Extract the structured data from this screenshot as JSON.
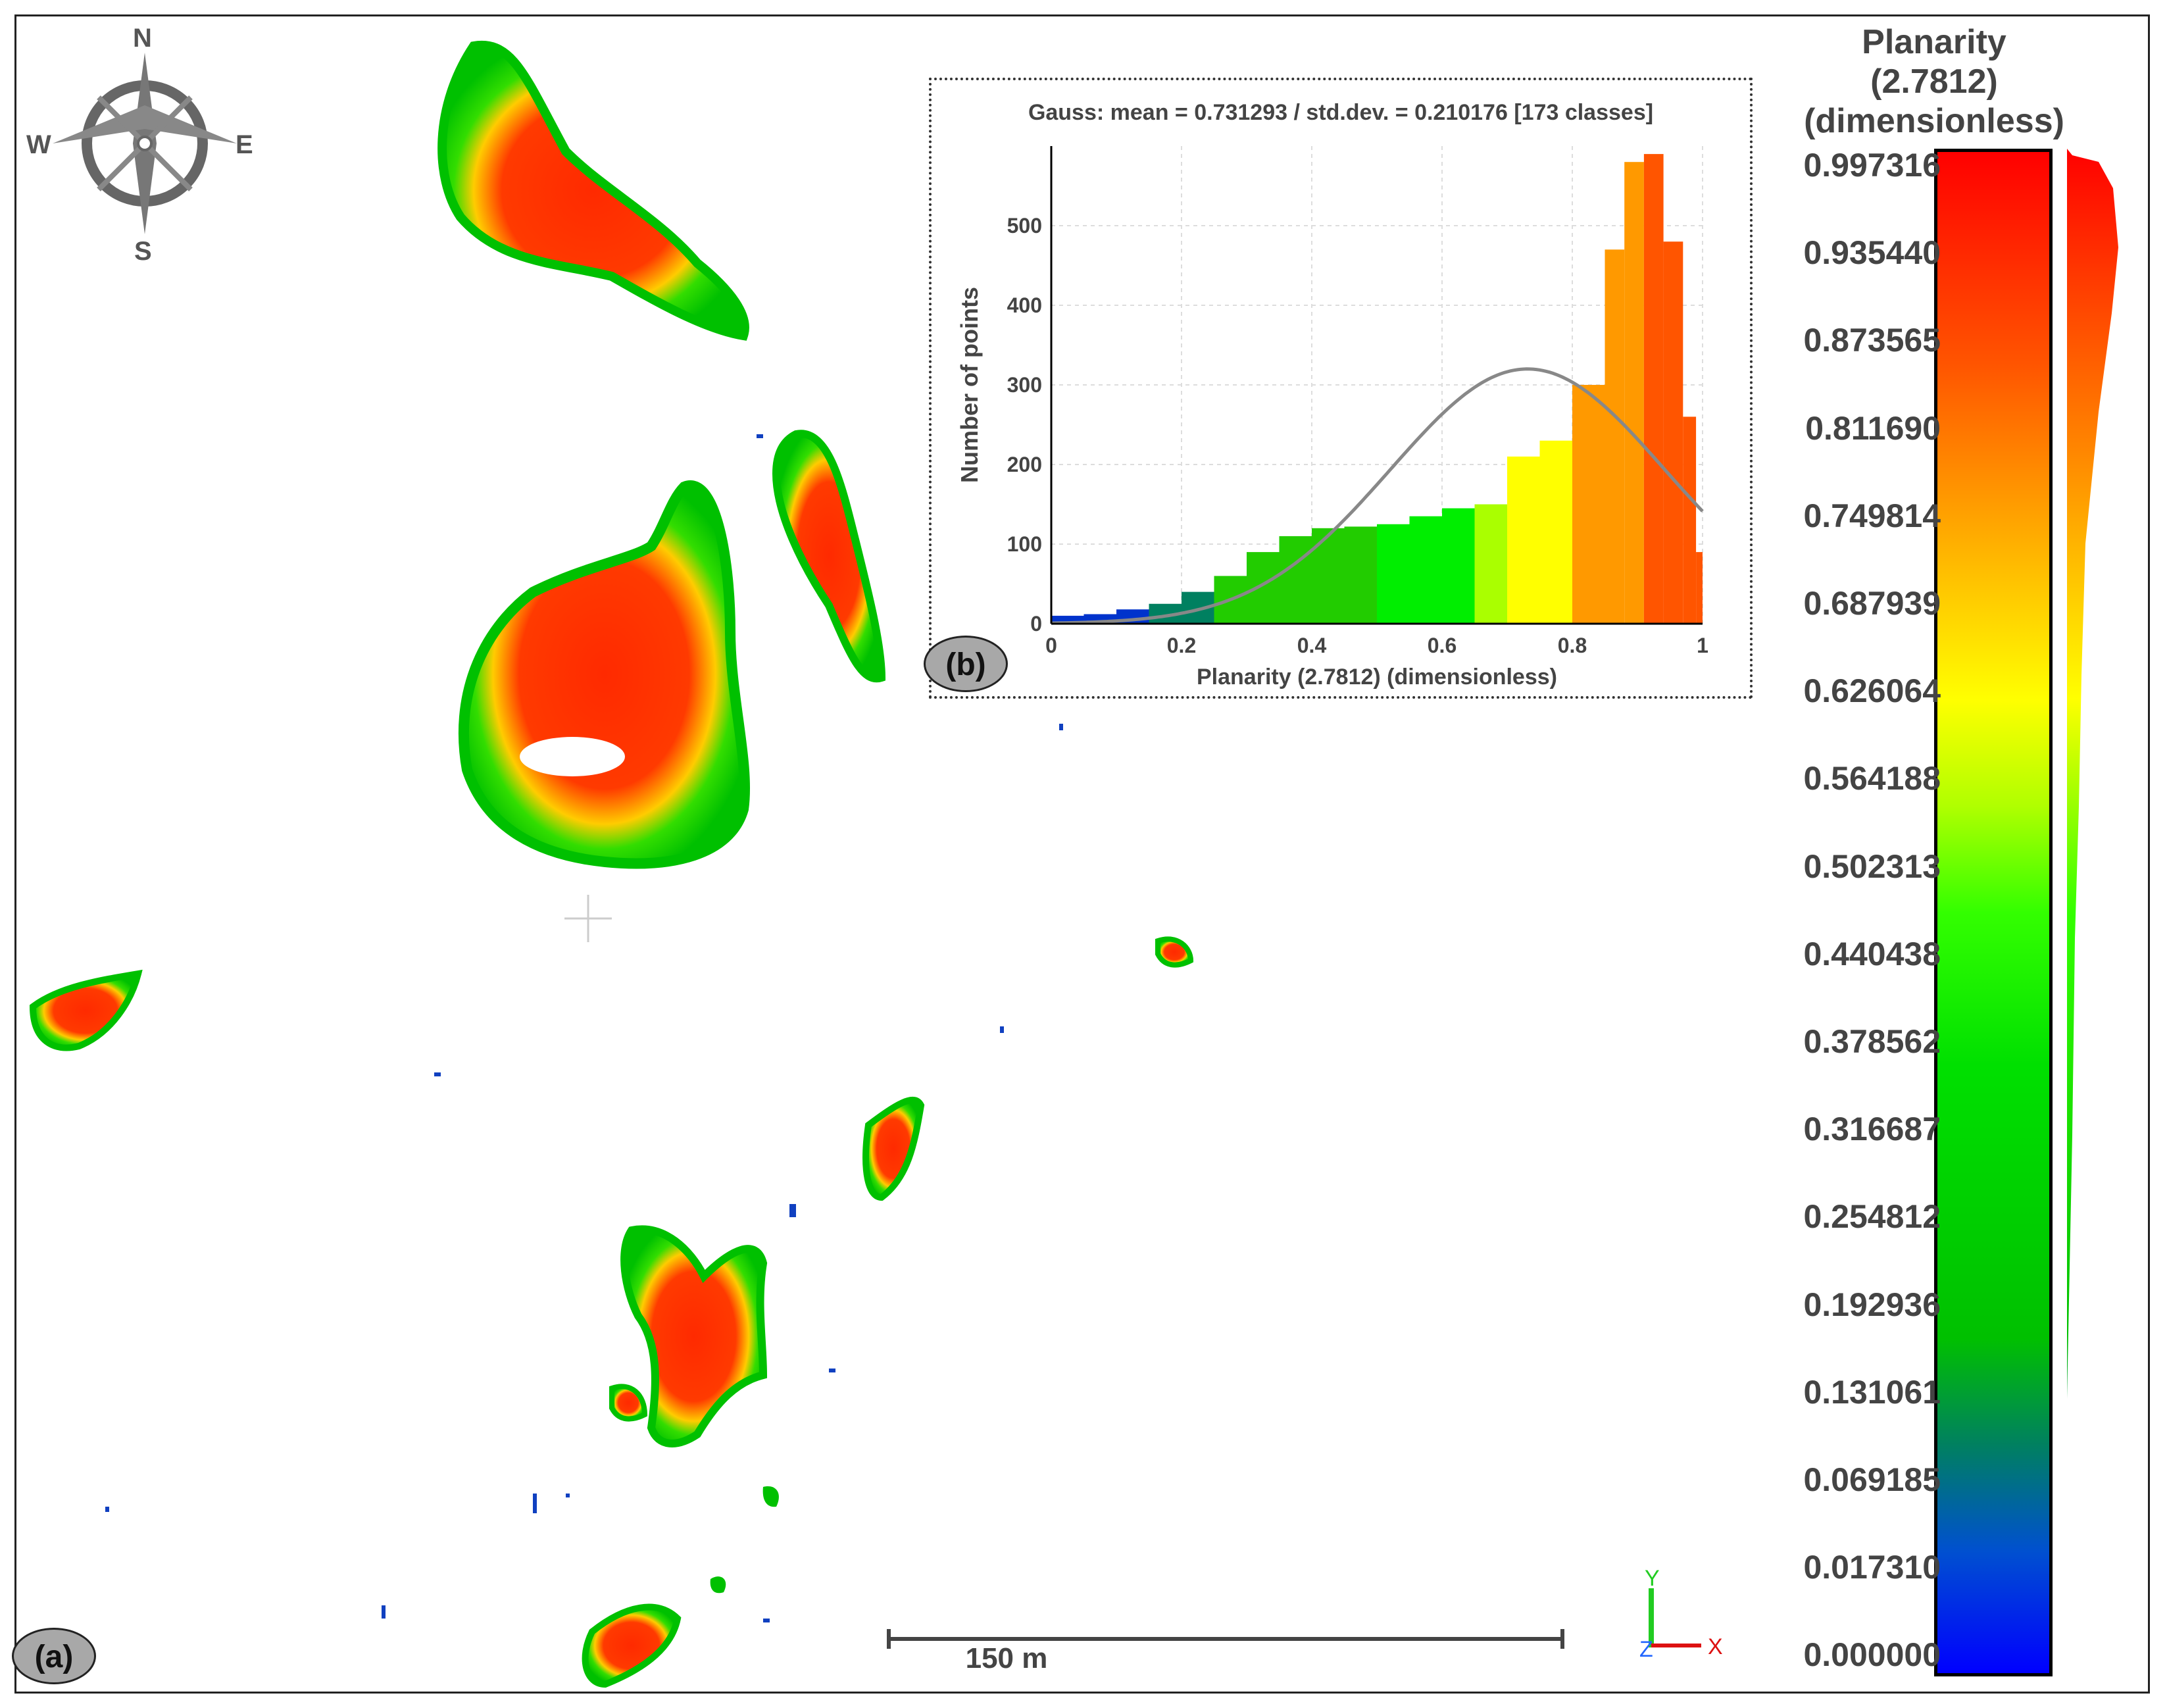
{
  "badges": {
    "panel_a": "(a)",
    "panel_b": "(b)"
  },
  "compass": {
    "north": "N",
    "south": "S",
    "east": "E",
    "west": "W"
  },
  "scale_bar": {
    "label": "150 m"
  },
  "axes_gizmo": {
    "y": "Y",
    "z": "Z",
    "x": "X"
  },
  "color_scale": {
    "title_lines": [
      "Planarity",
      "(2.7812)",
      "(dimensionless)"
    ],
    "ticks": [
      "0.997316",
      "0.935440",
      "0.873565",
      "0.811690",
      "0.749814",
      "0.687939",
      "0.626064",
      "0.564188",
      "0.502313",
      "0.440438",
      "0.378562",
      "0.316687",
      "0.254812",
      "0.192936",
      "0.131061",
      "0.069185",
      "0.017310",
      "0.000000"
    ],
    "colors": [
      "#0000ff",
      "#0055cc",
      "#008060",
      "#00cc00",
      "#00e000",
      "#7fff00",
      "#ffff00",
      "#ffaa00",
      "#ff5500",
      "#ff0000"
    ]
  },
  "chart_data": {
    "type": "bar",
    "title": "Gauss: mean = 0.731293 / std.dev. = 0.210176 [173 classes]",
    "xlabel": "Planarity (2.7812) (dimensionless)",
    "ylabel": "Number of points",
    "xlim": [
      0,
      1
    ],
    "ylim": [
      0,
      600
    ],
    "xticks": [
      "0",
      "0.2",
      "0.4",
      "0.6",
      "0.8",
      "1"
    ],
    "yticks": [
      "0",
      "100",
      "200",
      "300",
      "400",
      "500"
    ],
    "gauss": {
      "mean": 0.731293,
      "std": 0.210176,
      "peak": 320
    },
    "bins": [
      {
        "x": 0.0,
        "y": 10
      },
      {
        "x": 0.05,
        "y": 12
      },
      {
        "x": 0.1,
        "y": 18
      },
      {
        "x": 0.15,
        "y": 25
      },
      {
        "x": 0.2,
        "y": 40
      },
      {
        "x": 0.25,
        "y": 60
      },
      {
        "x": 0.3,
        "y": 90
      },
      {
        "x": 0.35,
        "y": 110
      },
      {
        "x": 0.4,
        "y": 120
      },
      {
        "x": 0.45,
        "y": 122
      },
      {
        "x": 0.5,
        "y": 125
      },
      {
        "x": 0.55,
        "y": 135
      },
      {
        "x": 0.6,
        "y": 145
      },
      {
        "x": 0.65,
        "y": 150
      },
      {
        "x": 0.7,
        "y": 210
      },
      {
        "x": 0.75,
        "y": 230
      },
      {
        "x": 0.8,
        "y": 300
      },
      {
        "x": 0.85,
        "y": 470
      },
      {
        "x": 0.88,
        "y": 580
      },
      {
        "x": 0.91,
        "y": 590
      },
      {
        "x": 0.94,
        "y": 480
      },
      {
        "x": 0.97,
        "y": 260
      },
      {
        "x": 0.99,
        "y": 90
      }
    ]
  }
}
